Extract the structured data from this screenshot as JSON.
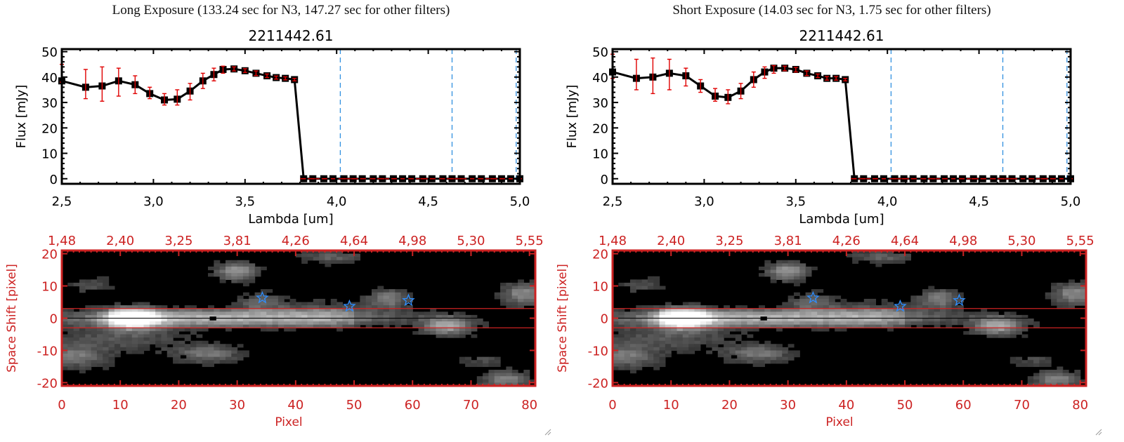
{
  "panels": [
    {
      "exposure_title": "Long Exposure (133.24 sec for N3, 147.27 sec for other filters)",
      "object_id": "2211442.61"
    },
    {
      "exposure_title": "Short Exposure (14.03 sec for N3, 1.75 sec for other filters)",
      "object_id": "2211442.61"
    }
  ],
  "colors": {
    "axis_red": "#cc2222",
    "errorbar_red": "#e00000",
    "marker_black": "#000000",
    "dashed_blue": "#3090e0",
    "star_blue": "#2f8fff",
    "zero_line_red": "#dd0000"
  },
  "chart_data": [
    {
      "type": "line",
      "title": "2211442.61",
      "xlabel": "Lambda [um]",
      "ylabel": "Flux [mJy]",
      "xlim": [
        2.5,
        5.0
      ],
      "ylim": [
        -2,
        51
      ],
      "xticks": [
        "2.5",
        "3.0",
        "3.5",
        "4.0",
        "4.5",
        "5.0"
      ],
      "yticks": [
        "0",
        "10",
        "20",
        "30",
        "40",
        "50"
      ],
      "vlines_dashed": [
        4.02,
        4.63,
        4.98
      ],
      "hline_dashed": 0,
      "series": [
        {
          "name": "flux",
          "x": [
            2.5,
            2.63,
            2.72,
            2.81,
            2.9,
            2.98,
            3.06,
            3.13,
            3.2,
            3.27,
            3.33,
            3.38,
            3.44,
            3.5,
            3.56,
            3.62,
            3.67,
            3.72,
            3.77,
            3.82,
            3.87,
            3.93,
            3.98,
            4.04,
            4.09,
            4.14,
            4.2,
            4.25,
            4.31,
            4.36,
            4.41,
            4.47,
            4.52,
            4.58,
            4.63,
            4.68,
            4.74,
            4.79,
            4.85,
            4.9,
            4.95,
            5.0
          ],
          "y": [
            38.5,
            36,
            36.5,
            38.5,
            37,
            33.5,
            31,
            31.3,
            34.5,
            38.5,
            41,
            43,
            43.2,
            42.5,
            41.5,
            40.5,
            39.8,
            39.5,
            39,
            0,
            0,
            0,
            0,
            0,
            0,
            0,
            0,
            0,
            0,
            0,
            0,
            0,
            0,
            0,
            0,
            0,
            0,
            0,
            0,
            0,
            0,
            0
          ],
          "err_low": [
            38,
            31.5,
            30.5,
            32.5,
            33.5,
            31.5,
            29,
            29,
            31,
            35.5,
            38.5,
            41.5,
            42.4,
            41.8,
            40.6,
            39.8,
            39.2,
            38.9,
            38.5,
            0,
            0,
            0,
            0,
            0,
            0,
            0,
            0,
            0,
            0,
            0,
            0,
            0,
            0,
            0,
            0,
            0,
            0,
            0,
            0,
            0,
            0,
            0
          ],
          "err_high": [
            45,
            43,
            44,
            43.5,
            40.5,
            36,
            33.5,
            35,
            37.5,
            41.5,
            43.5,
            44.3,
            44,
            43.3,
            42.4,
            41.2,
            40.4,
            40.1,
            39.5,
            0,
            0,
            0,
            0,
            0,
            0,
            0,
            0,
            0,
            0,
            0,
            0,
            0,
            0,
            0,
            0,
            0,
            0,
            0,
            0,
            0,
            0,
            0
          ]
        }
      ]
    },
    {
      "type": "line",
      "title": "2211442.61",
      "xlabel": "Lambda [um]",
      "ylabel": "Flux [mJy]",
      "xlim": [
        2.5,
        5.0
      ],
      "ylim": [
        -2,
        51
      ],
      "xticks": [
        "2.5",
        "3.0",
        "3.5",
        "4.0",
        "4.5",
        "5.0"
      ],
      "yticks": [
        "0",
        "10",
        "20",
        "30",
        "40",
        "50"
      ],
      "vlines_dashed": [
        4.02,
        4.63,
        4.98
      ],
      "hline_dashed": 0,
      "series": [
        {
          "name": "flux",
          "x": [
            2.5,
            2.63,
            2.72,
            2.81,
            2.9,
            2.98,
            3.06,
            3.13,
            3.2,
            3.27,
            3.33,
            3.38,
            3.44,
            3.5,
            3.56,
            3.62,
            3.67,
            3.72,
            3.77,
            3.82,
            3.87,
            3.93,
            3.98,
            4.04,
            4.09,
            4.14,
            4.2,
            4.25,
            4.31,
            4.36,
            4.41,
            4.47,
            4.52,
            4.58,
            4.63,
            4.68,
            4.74,
            4.79,
            4.85,
            4.9,
            4.95,
            5.0
          ],
          "y": [
            42,
            39.5,
            40,
            41.5,
            40.5,
            36.5,
            32.5,
            32,
            34.5,
            39,
            42,
            43.5,
            43.5,
            43,
            41.5,
            40.5,
            39.5,
            39.5,
            39,
            0,
            0,
            0,
            0,
            0,
            0,
            0,
            0,
            0,
            0,
            0,
            0,
            0,
            0,
            0,
            0,
            0,
            0,
            0,
            0,
            0,
            0,
            0
          ],
          "err_low": [
            39.5,
            35,
            33.5,
            35,
            36.5,
            34,
            30.5,
            29.5,
            31.5,
            36,
            39.5,
            41.5,
            42.5,
            42,
            40.6,
            39.8,
            38.8,
            38.8,
            38.5,
            0,
            0,
            0,
            0,
            0,
            0,
            0,
            0,
            0,
            0,
            0,
            0,
            0,
            0,
            0,
            0,
            0,
            0,
            0,
            0,
            0,
            0,
            0
          ],
          "err_high": [
            49,
            47,
            47.5,
            47,
            43.5,
            39,
            35.5,
            35,
            37.5,
            42,
            44,
            44.5,
            44.3,
            43.8,
            42.4,
            41.2,
            40.2,
            40.2,
            39.5,
            0,
            0,
            0,
            0,
            0,
            0,
            0,
            0,
            0,
            0,
            0,
            0,
            0,
            0,
            0,
            0,
            0,
            0,
            0,
            0,
            0,
            0,
            0
          ]
        }
      ]
    },
    {
      "type": "heatmap",
      "xlabel": "Pixel",
      "ylabel": "Space Shift [pixel]",
      "xlim": [
        0,
        81
      ],
      "ylim": [
        -21,
        21
      ],
      "xticks": [
        "0",
        "10",
        "20",
        "30",
        "40",
        "50",
        "60",
        "70",
        "80"
      ],
      "yticks": [
        "-20",
        "-10",
        "0",
        "10",
        "20"
      ],
      "top_axis_ticks": [
        "1.48",
        "2.40",
        "3.25",
        "3.81",
        "4.26",
        "4.64",
        "4.98",
        "5.30",
        "5.55"
      ],
      "extraction_band": [
        -3,
        3
      ],
      "center_line": 0,
      "stars": [
        {
          "x": 34.3,
          "y": 6.3
        },
        {
          "x": 49.2,
          "y": 3.7
        },
        {
          "x": 59.3,
          "y": 5.5
        }
      ],
      "sources": [
        {
          "x": 12,
          "y": 0,
          "amp": 1.0,
          "sx": 3.2,
          "sy": 2.2
        },
        {
          "x": 26,
          "y": 0,
          "amp": 0.55,
          "sx": 22,
          "sy": 1.8
        },
        {
          "x": 30,
          "y": 14.5,
          "amp": 0.55,
          "sx": 2.5,
          "sy": 2
        },
        {
          "x": 34,
          "y": 5,
          "amp": 0.3,
          "sx": 3,
          "sy": 2
        },
        {
          "x": 56,
          "y": 6,
          "amp": 0.45,
          "sx": 2.5,
          "sy": 2
        },
        {
          "x": 66,
          "y": -2.5,
          "amp": 0.6,
          "sx": 3,
          "sy": 2
        },
        {
          "x": 79,
          "y": 7.5,
          "amp": 0.5,
          "sx": 2.5,
          "sy": 2.5
        },
        {
          "x": 25,
          "y": -11,
          "amp": 0.4,
          "sx": 4,
          "sy": 2
        },
        {
          "x": 2,
          "y": -12,
          "amp": 0.4,
          "sx": 4,
          "sy": 2.5
        },
        {
          "x": 76,
          "y": -19,
          "amp": 0.45,
          "sx": 3,
          "sy": 2
        },
        {
          "x": 46,
          "y": 19,
          "amp": 0.3,
          "sx": 4,
          "sy": 1.5
        },
        {
          "x": 45,
          "y": 2,
          "amp": 0.2,
          "sx": 6,
          "sy": 3
        },
        {
          "x": 10,
          "y": -6,
          "amp": 0.25,
          "sx": 8,
          "sy": 3
        },
        {
          "x": 5,
          "y": 10.5,
          "amp": 0.22,
          "sx": 2.5,
          "sy": 2
        },
        {
          "x": 72,
          "y": -13,
          "amp": 0.2,
          "sx": 2.5,
          "sy": 1.5
        }
      ]
    }
  ]
}
